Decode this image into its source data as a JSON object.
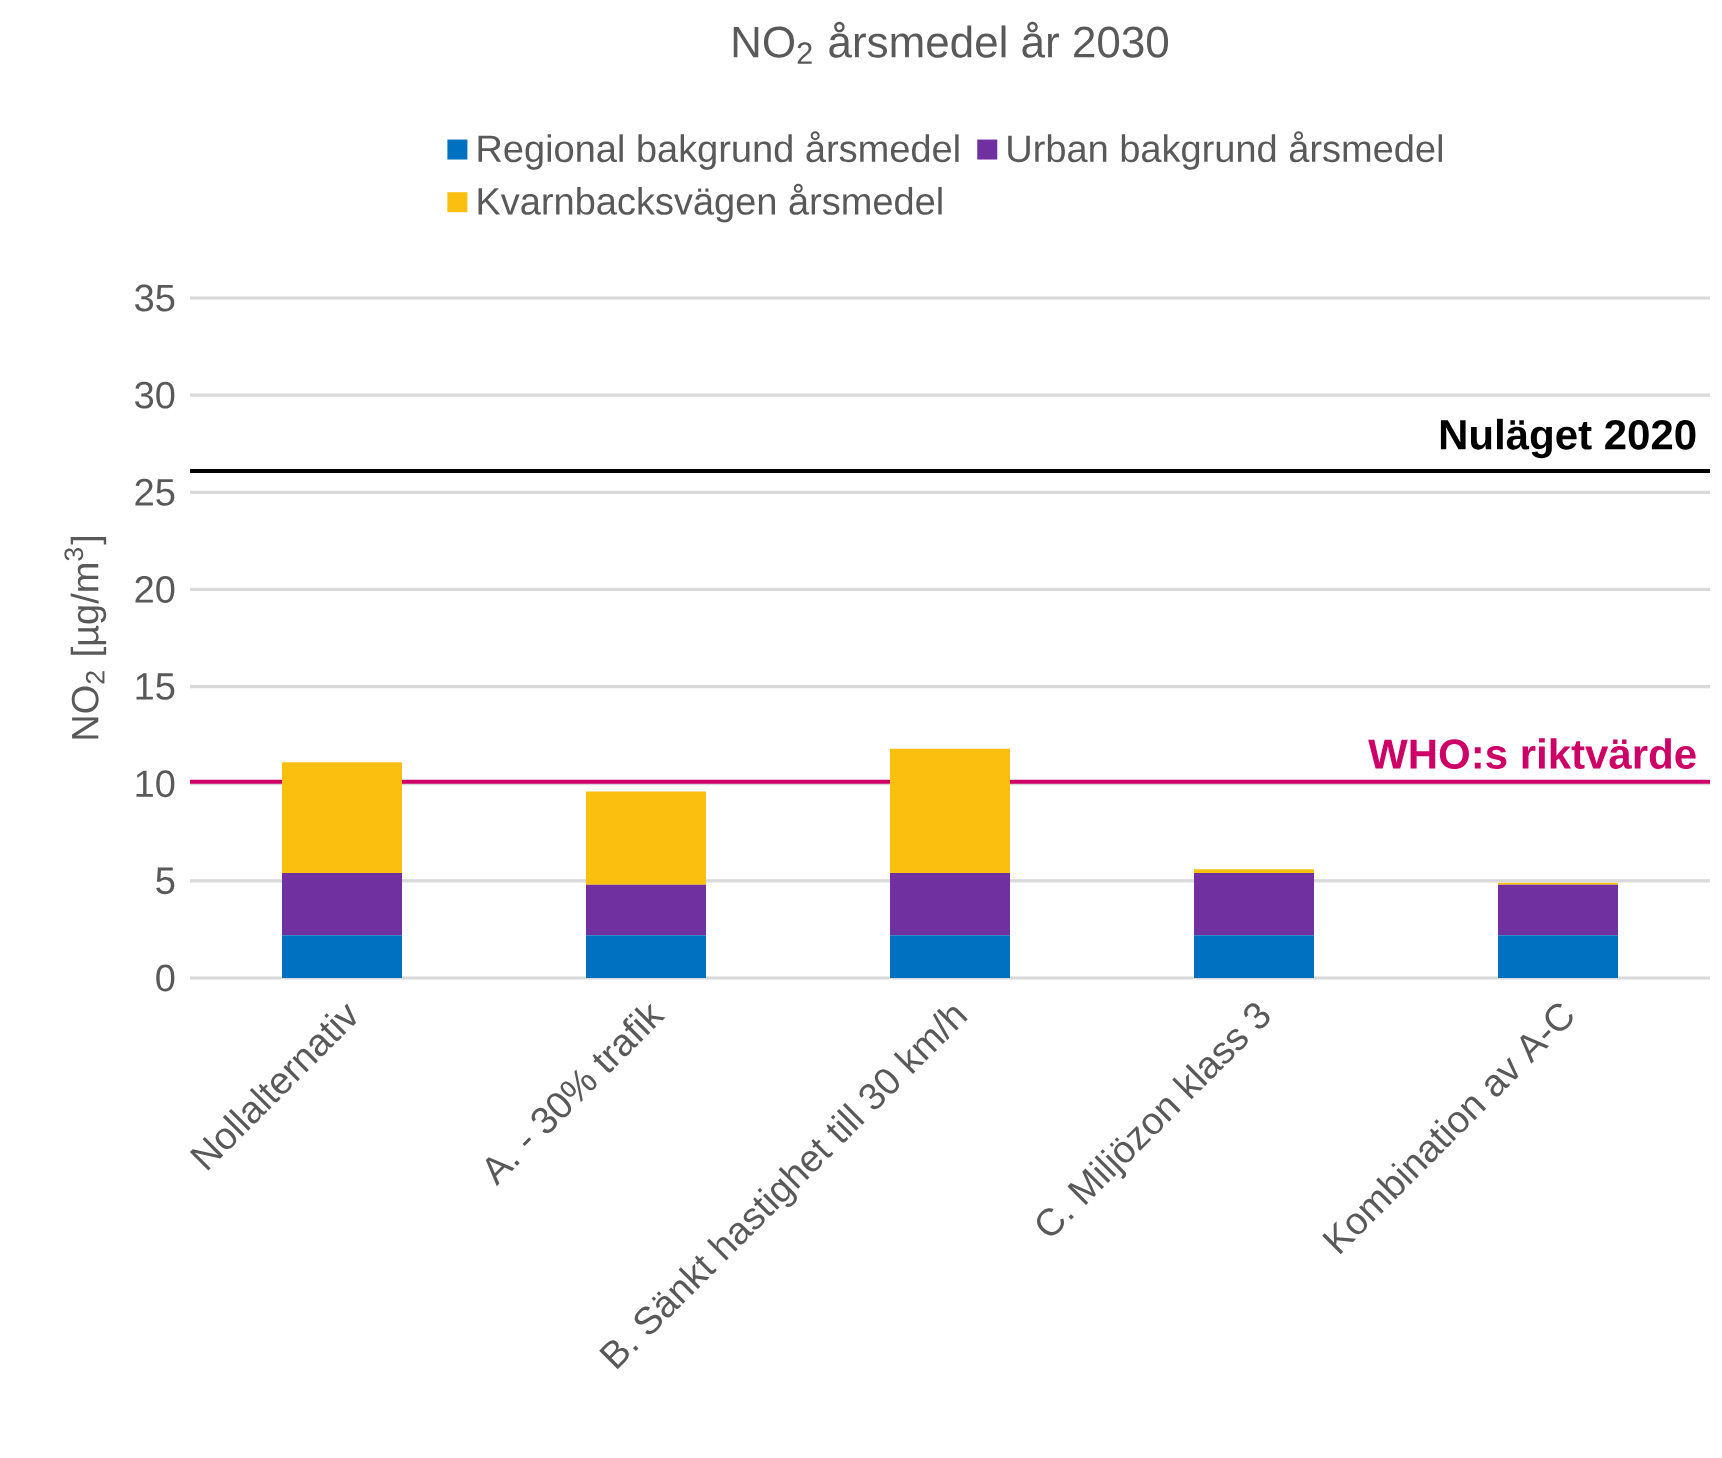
{
  "chart_data": {
    "type": "bar",
    "stacked": true,
    "title": "NO$_{2}$ årsmedel år 2030",
    "ylabel": "NO$_{2}$ [µg/m$^{3}$]",
    "categories": [
      "Nollalternativ",
      "A. - 30% trafik",
      "B. Sänkt hastighet till 30 km/h",
      "C. Miljözon klass 3",
      "Kombination av A-C"
    ],
    "series": [
      {
        "name": "Regional bakgrund årsmedel",
        "color": "#0070c0",
        "values": [
          2.2,
          2.2,
          2.2,
          2.2,
          2.2
        ]
      },
      {
        "name": "Urban bakgrund årsmedel",
        "color": "#7030a0",
        "values": [
          3.2,
          2.6,
          3.2,
          3.2,
          2.6
        ]
      },
      {
        "name": "Kvarnbacksvägen årsmedel",
        "color": "#fbc00f",
        "values": [
          5.7,
          4.8,
          6.4,
          0.2,
          0.1
        ]
      }
    ],
    "ylim": [
      0,
      35
    ],
    "yticks": [
      0,
      5,
      10,
      15,
      20,
      25,
      30,
      35
    ],
    "grid": "y",
    "legend": "top",
    "ref_lines": [
      {
        "axis": "y",
        "value": 26.1,
        "label": "Nuläget 2020",
        "color": "#000000"
      },
      {
        "axis": "y",
        "value": 10.1,
        "label": "WHO:s riktvärde",
        "color": "#cc0066"
      }
    ]
  }
}
